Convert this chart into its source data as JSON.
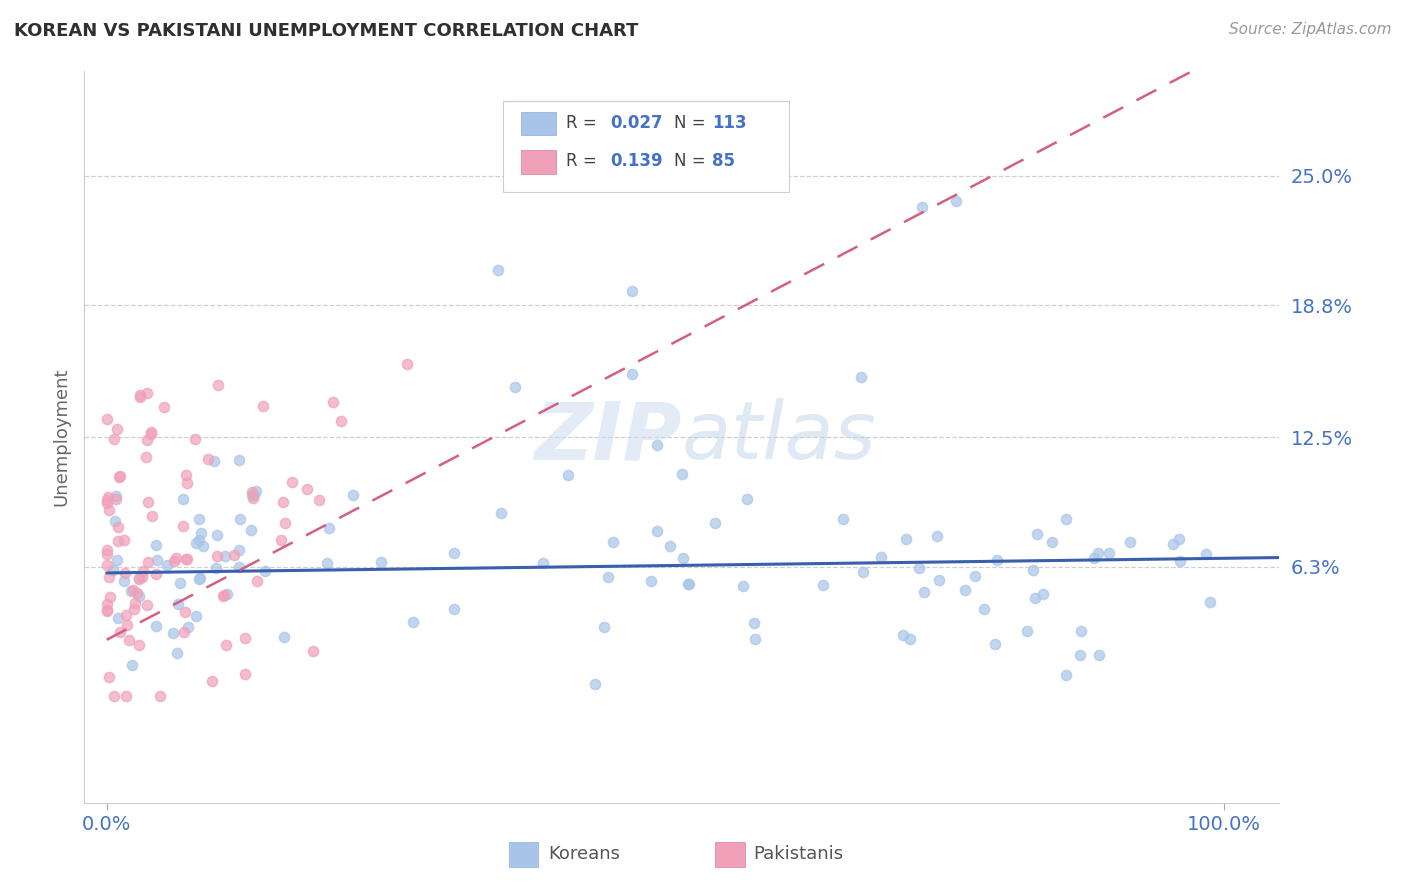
{
  "title": "KOREAN VS PAKISTANI UNEMPLOYMENT CORRELATION CHART",
  "source": "Source: ZipAtlas.com",
  "ylabel": "Unemployment",
  "ytick_vals": [
    0.063,
    0.125,
    0.188,
    0.25
  ],
  "ytick_labels": [
    "6.3%",
    "12.5%",
    "18.8%",
    "25.0%"
  ],
  "xlim": [
    -0.02,
    1.05
  ],
  "ylim": [
    -0.05,
    0.3
  ],
  "korean_R": 0.027,
  "korean_N": 113,
  "pakistani_R": 0.139,
  "pakistani_N": 85,
  "korean_color": "#a8c4e8",
  "pakistani_color": "#f0a0b8",
  "korean_trend_color": "#3a5fad",
  "pakistani_trend_color": "#d46080",
  "title_color": "#303030",
  "tick_label_color": "#4472c4",
  "background_color": "#ffffff",
  "grid_color": "#d0d0d0",
  "watermark_color": "#ccdcf0",
  "legend_label_1": "Koreans",
  "legend_label_2": "Pakistanis"
}
